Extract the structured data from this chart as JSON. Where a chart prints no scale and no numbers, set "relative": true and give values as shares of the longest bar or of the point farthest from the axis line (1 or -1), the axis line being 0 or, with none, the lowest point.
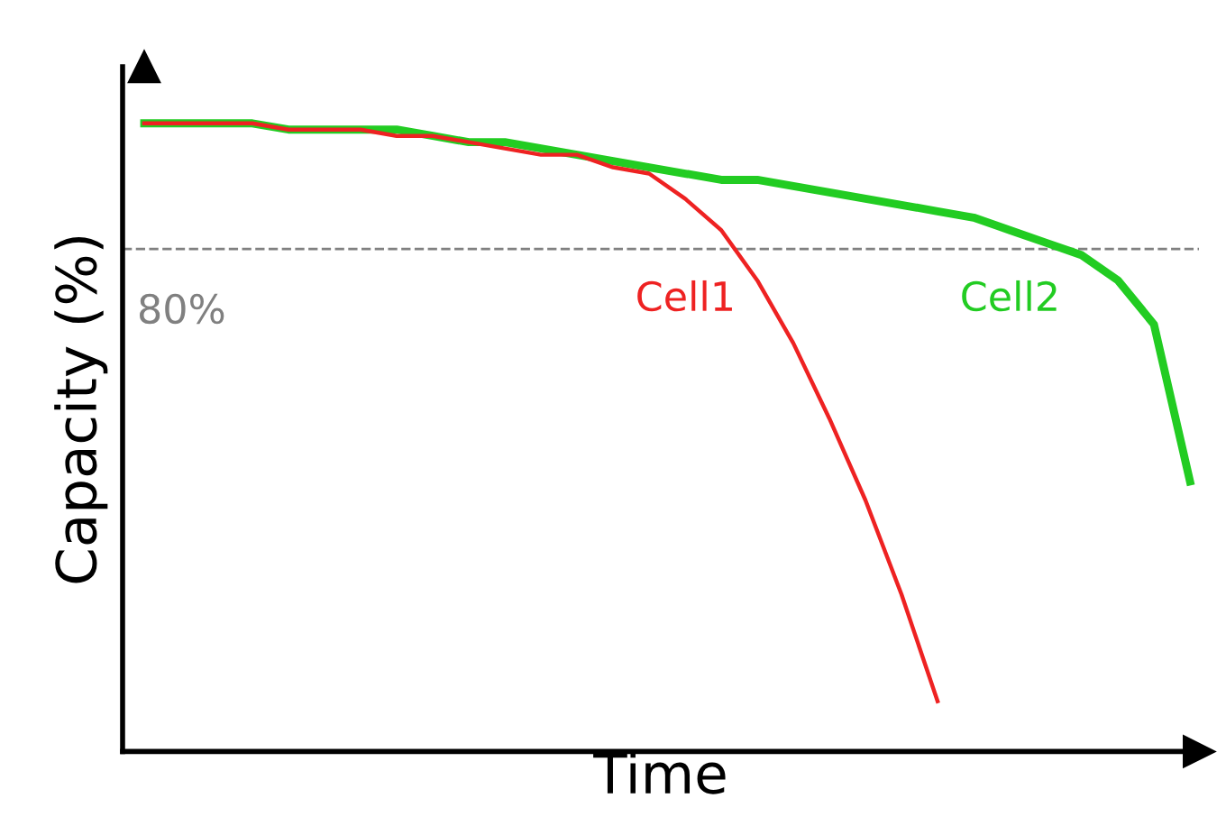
{
  "chart_data": {
    "type": "line",
    "relative": true,
    "xlabel": "Time",
    "ylabel": "Capacity (%)",
    "legend": false,
    "marker": "none",
    "line_style": "solid",
    "categories": [
      null,
      null,
      null,
      null,
      null,
      null,
      null,
      null,
      null,
      null,
      null,
      null,
      null,
      null,
      null,
      null,
      null,
      null,
      null,
      null,
      null,
      null,
      null,
      null,
      null,
      null,
      null,
      null,
      null,
      null
    ],
    "series": [
      {
        "name": "Cell1",
        "color": "#ee2222",
        "values": [
          1.0,
          1.0,
          1.0,
          1.0,
          0.99,
          0.99,
          0.99,
          0.98,
          0.98,
          0.97,
          0.96,
          0.95,
          0.95,
          0.93,
          0.92,
          0.88,
          0.83,
          0.75,
          0.65,
          0.53,
          0.4,
          0.25,
          0.08,
          null,
          null,
          null,
          null,
          null,
          null,
          null
        ]
      },
      {
        "name": "Cell2",
        "color": "#22cc22",
        "values": [
          1.0,
          1.0,
          1.0,
          1.0,
          0.99,
          0.99,
          0.99,
          0.99,
          0.98,
          0.97,
          0.97,
          0.96,
          0.95,
          0.94,
          0.93,
          0.92,
          0.91,
          0.91,
          0.9,
          0.89,
          0.88,
          0.87,
          0.86,
          0.85,
          0.83,
          0.81,
          0.79,
          0.75,
          0.68,
          0.43
        ]
      }
    ],
    "ref_lines": [
      {
        "axis": "y",
        "value": 0.8,
        "label": "80%",
        "color": "#808080",
        "line_style": "dashed"
      }
    ]
  }
}
